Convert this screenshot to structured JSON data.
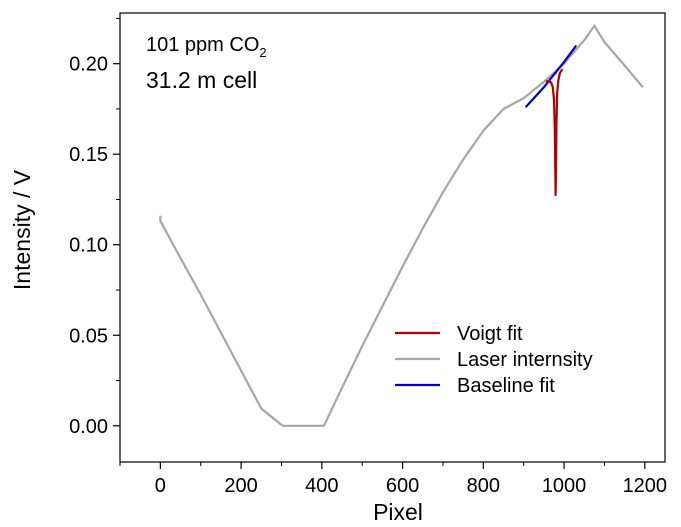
{
  "chart_data": {
    "type": "line",
    "xlabel": "Pixel",
    "ylabel": "Intensity / V",
    "xlim": [
      -100,
      1250
    ],
    "ylim": [
      -0.02,
      0.228
    ],
    "x_ticks": [
      0,
      200,
      400,
      600,
      800,
      1000,
      1200
    ],
    "x_tick_labels": [
      "0",
      "200",
      "400",
      "600",
      "800",
      "1000",
      "1200"
    ],
    "y_ticks": [
      0.0,
      0.05,
      0.1,
      0.15,
      0.2
    ],
    "y_tick_labels": [
      "0.00",
      "0.05",
      "0.10",
      "0.15",
      "0.20"
    ],
    "grid": false,
    "legend_position": "bottom-right",
    "annotations": {
      "concentration_text": "101 ppm CO",
      "concentration_subscript": "2",
      "cell_text": "31.2 m cell"
    },
    "series": [
      {
        "name": "Laser internsity",
        "color": "#a6a6a6",
        "x": [
          0,
          0,
          5,
          50,
          100,
          150,
          200,
          250,
          300,
          305,
          400,
          405,
          450,
          500,
          550,
          600,
          650,
          700,
          750,
          800,
          850,
          900,
          950,
          1000,
          1050,
          1075,
          1100,
          1150,
          1195
        ],
        "y": [
          0.116,
          0.113,
          0.111,
          0.0925,
          0.0725,
          0.0515,
          0.0305,
          0.0095,
          0.0005,
          0.0,
          0.0,
          0.0,
          0.021,
          0.044,
          0.066,
          0.088,
          0.109,
          0.129,
          0.147,
          0.163,
          0.175,
          0.181,
          0.19,
          0.2,
          0.213,
          0.221,
          0.212,
          0.199,
          0.187
        ]
      },
      {
        "name": "Baseline fit",
        "color": "#0000cd",
        "x": [
          905,
          950,
          1000,
          1030
        ],
        "y": [
          0.176,
          0.187,
          0.201,
          0.21
        ]
      },
      {
        "name": "Voigt fit",
        "color": "#b30000",
        "x": [
          955,
          962,
          968,
          972,
          975,
          977,
          978,
          979,
          980,
          981,
          983,
          986,
          990,
          996
        ],
        "y": [
          0.19,
          0.1905,
          0.1895,
          0.187,
          0.18,
          0.164,
          0.146,
          0.1275,
          0.14,
          0.165,
          0.184,
          0.191,
          0.195,
          0.197
        ]
      }
    ],
    "legend_order": [
      "Voigt fit",
      "Laser internsity",
      "Baseline fit"
    ]
  }
}
